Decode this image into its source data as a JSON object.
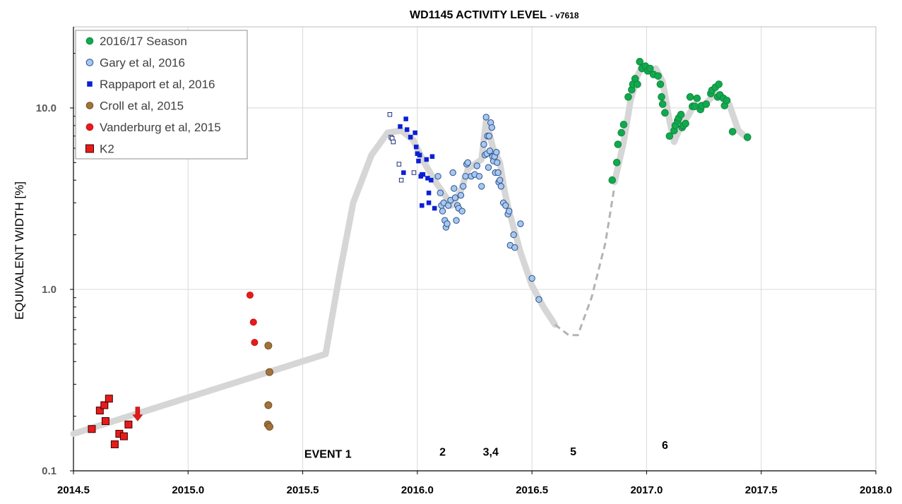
{
  "chart_data": {
    "type": "scatter",
    "title": "WD1145 ACTIVITY LEVEL",
    "subtitle": "- v7618",
    "xlabel": "",
    "ylabel": "EQUIVALENT WIDTH [%]",
    "xlim": [
      2014.5,
      2018.0
    ],
    "ylim": [
      0.1,
      28
    ],
    "yscale": "log",
    "grid": true,
    "legend_position": "top-left",
    "x_ticks": [
      "2014.5",
      "2015.0",
      "2015.5",
      "2016.0",
      "2016.5",
      "2017.0",
      "2017.5",
      "2018.0"
    ],
    "y_ticks": [
      {
        "value": 0.1,
        "label": "0.1"
      },
      {
        "value": 1.0,
        "label": "1.0"
      },
      {
        "value": 10.0,
        "label": "10.0"
      }
    ],
    "annotations": [
      {
        "text": "EVENT 1",
        "x": 2015.61,
        "y": 0.118
      },
      {
        "text": "2",
        "x": 2016.11,
        "y": 0.121
      },
      {
        "text": "3,4",
        "x": 2016.32,
        "y": 0.121
      },
      {
        "text": "5",
        "x": 2016.68,
        "y": 0.122
      },
      {
        "text": "6",
        "x": 2017.08,
        "y": 0.132
      }
    ],
    "arrow": {
      "x": 2014.78,
      "y_from": 0.225,
      "y_to": 0.188,
      "color": "#e11a1a"
    },
    "trend": {
      "color": "#d6d6d6",
      "solid1": [
        [
          2014.5,
          0.16
        ],
        [
          2015.6,
          0.44
        ],
        [
          2015.66,
          1.2
        ],
        [
          2015.72,
          3.0
        ],
        [
          2015.8,
          5.5
        ],
        [
          2015.87,
          7.3
        ],
        [
          2015.93,
          7.5
        ],
        [
          2015.98,
          6.7
        ],
        [
          2016.03,
          5.0
        ],
        [
          2016.08,
          3.9
        ],
        [
          2016.12,
          3.3
        ],
        [
          2016.15,
          2.9
        ],
        [
          2016.19,
          3.5
        ],
        [
          2016.22,
          4.6
        ],
        [
          2016.25,
          4.9
        ],
        [
          2016.28,
          5.2
        ],
        [
          2016.3,
          8.5
        ],
        [
          2016.33,
          6.0
        ],
        [
          2016.36,
          5.0
        ],
        [
          2016.38,
          3.5
        ],
        [
          2016.4,
          2.7
        ],
        [
          2016.45,
          1.6
        ],
        [
          2016.5,
          1.05
        ],
        [
          2016.55,
          0.8
        ],
        [
          2016.6,
          0.64
        ]
      ],
      "dashed": [
        [
          2016.6,
          0.64
        ],
        [
          2016.66,
          0.56
        ],
        [
          2016.7,
          0.56
        ],
        [
          2016.76,
          0.9
        ],
        [
          2016.82,
          1.8
        ],
        [
          2016.86,
          3.7
        ]
      ],
      "solid2": [
        [
          2016.86,
          3.9
        ],
        [
          2016.9,
          6.5
        ],
        [
          2016.93,
          11.0
        ],
        [
          2016.96,
          15.0
        ],
        [
          2016.98,
          17.0
        ],
        [
          2017.01,
          16.0
        ],
        [
          2017.04,
          16.5
        ],
        [
          2017.07,
          14.0
        ],
        [
          2017.1,
          8.5
        ],
        [
          2017.12,
          6.5
        ],
        [
          2017.15,
          8.0
        ],
        [
          2017.18,
          9.0
        ],
        [
          2017.21,
          10.5
        ],
        [
          2017.24,
          10.0
        ],
        [
          2017.27,
          11.0
        ],
        [
          2017.3,
          12.0
        ],
        [
          2017.33,
          11.5
        ],
        [
          2017.36,
          10.5
        ],
        [
          2017.4,
          7.5
        ],
        [
          2017.44,
          6.8
        ]
      ]
    },
    "series": [
      {
        "name": "2016/17 Season",
        "marker": "circle",
        "color": "#12a94e",
        "stroke": "#0c8a3e",
        "size": 4.8,
        "points": [
          [
            2016.85,
            4.0
          ],
          [
            2016.87,
            5.0
          ],
          [
            2016.875,
            6.3
          ],
          [
            2016.89,
            7.3
          ],
          [
            2016.9,
            8.1
          ],
          [
            2016.92,
            11.5
          ],
          [
            2016.935,
            12.6
          ],
          [
            2016.94,
            13.5
          ],
          [
            2016.95,
            14.5
          ],
          [
            2016.96,
            13.5
          ],
          [
            2016.97,
            18.0
          ],
          [
            2016.98,
            16.5
          ],
          [
            2016.995,
            17.0
          ],
          [
            2017.005,
            16.0
          ],
          [
            2017.015,
            16.5
          ],
          [
            2017.03,
            15.3
          ],
          [
            2017.05,
            15.0
          ],
          [
            2017.06,
            13.5
          ],
          [
            2017.065,
            11.5
          ],
          [
            2017.07,
            10.5
          ],
          [
            2017.08,
            9.4
          ],
          [
            2017.1,
            7.0
          ],
          [
            2017.12,
            7.5
          ],
          [
            2017.125,
            8.0
          ],
          [
            2017.135,
            8.5
          ],
          [
            2017.14,
            8.8
          ],
          [
            2017.15,
            9.2
          ],
          [
            2017.155,
            7.8
          ],
          [
            2017.16,
            8.0
          ],
          [
            2017.17,
            8.2
          ],
          [
            2017.19,
            11.5
          ],
          [
            2017.2,
            10.2
          ],
          [
            2017.21,
            10.2
          ],
          [
            2017.22,
            11.3
          ],
          [
            2017.235,
            9.8
          ],
          [
            2017.24,
            10.3
          ],
          [
            2017.26,
            10.5
          ],
          [
            2017.28,
            12.0
          ],
          [
            2017.285,
            12.5
          ],
          [
            2017.3,
            13.0
          ],
          [
            2017.31,
            11.5
          ],
          [
            2017.315,
            13.5
          ],
          [
            2017.32,
            11.8
          ],
          [
            2017.335,
            11.3
          ],
          [
            2017.34,
            10.3
          ],
          [
            2017.35,
            11.0
          ],
          [
            2017.375,
            7.4
          ],
          [
            2017.44,
            6.9
          ]
        ]
      },
      {
        "name": "Gary et al, 2016",
        "marker": "circle",
        "color": "#a4c8f0",
        "stroke": "#2f4f8a",
        "size": 4.2,
        "points": [
          [
            2016.09,
            4.2
          ],
          [
            2016.1,
            3.4
          ],
          [
            2016.105,
            2.9
          ],
          [
            2016.11,
            2.7
          ],
          [
            2016.115,
            3.0
          ],
          [
            2016.12,
            2.4
          ],
          [
            2016.125,
            2.2
          ],
          [
            2016.13,
            2.3
          ],
          [
            2016.135,
            2.9
          ],
          [
            2016.145,
            3.1
          ],
          [
            2016.155,
            4.4
          ],
          [
            2016.16,
            3.6
          ],
          [
            2016.165,
            3.2
          ],
          [
            2016.17,
            2.4
          ],
          [
            2016.175,
            2.9
          ],
          [
            2016.18,
            2.8
          ],
          [
            2016.19,
            3.3
          ],
          [
            2016.195,
            2.7
          ],
          [
            2016.2,
            3.7
          ],
          [
            2016.21,
            4.2
          ],
          [
            2016.215,
            4.9
          ],
          [
            2016.22,
            5.0
          ],
          [
            2016.235,
            4.2
          ],
          [
            2016.25,
            4.3
          ],
          [
            2016.26,
            4.8
          ],
          [
            2016.27,
            4.2
          ],
          [
            2016.28,
            3.7
          ],
          [
            2016.29,
            6.3
          ],
          [
            2016.295,
            5.5
          ],
          [
            2016.3,
            8.9
          ],
          [
            2016.303,
            5.6
          ],
          [
            2016.306,
            7.0
          ],
          [
            2016.31,
            4.7
          ],
          [
            2016.313,
            7.0
          ],
          [
            2016.316,
            5.8
          ],
          [
            2016.32,
            8.3
          ],
          [
            2016.325,
            7.8
          ],
          [
            2016.328,
            5.4
          ],
          [
            2016.332,
            5.1
          ],
          [
            2016.337,
            5.4
          ],
          [
            2016.34,
            4.4
          ],
          [
            2016.345,
            5.7
          ],
          [
            2016.348,
            5.0
          ],
          [
            2016.352,
            4.4
          ],
          [
            2016.355,
            3.9
          ],
          [
            2016.36,
            4.0
          ],
          [
            2016.365,
            3.7
          ],
          [
            2016.375,
            3.0
          ],
          [
            2016.385,
            2.9
          ],
          [
            2016.395,
            2.6
          ],
          [
            2016.4,
            2.7
          ],
          [
            2016.405,
            1.75
          ],
          [
            2016.42,
            2.0
          ],
          [
            2016.425,
            1.7
          ],
          [
            2016.45,
            2.3
          ],
          [
            2016.5,
            1.15
          ],
          [
            2016.53,
            0.88
          ]
        ]
      },
      {
        "name": "Rappaport et al, 2016",
        "marker": "square",
        "color": "#0b1fd6",
        "stroke": "#0b1fd6",
        "size": 6,
        "points": [
          [
            2015.925,
            7.9
          ],
          [
            2015.95,
            8.7
          ],
          [
            2015.955,
            7.6
          ],
          [
            2015.97,
            6.9
          ],
          [
            2015.99,
            7.3
          ],
          [
            2015.995,
            6.1
          ],
          [
            2016.0,
            5.6
          ],
          [
            2016.005,
            5.1
          ],
          [
            2016.01,
            5.5
          ],
          [
            2016.015,
            4.2
          ],
          [
            2016.02,
            4.3
          ],
          [
            2016.025,
            4.3
          ],
          [
            2016.04,
            5.2
          ],
          [
            2016.045,
            4.1
          ],
          [
            2016.05,
            3.4
          ],
          [
            2016.06,
            4.0
          ],
          [
            2016.065,
            5.4
          ],
          [
            2016.075,
            2.8
          ],
          [
            2016.02,
            2.9
          ],
          [
            2016.05,
            3.0
          ],
          [
            2015.94,
            4.4
          ]
        ]
      },
      {
        "name": "Rappaport open squares",
        "marker": "square-open",
        "color": "#ffffff",
        "stroke": "#1f2f7a",
        "size": 5.5,
        "points": [
          [
            2015.88,
            9.2
          ],
          [
            2015.885,
            6.9
          ],
          [
            2015.89,
            6.8
          ],
          [
            2015.895,
            6.5
          ],
          [
            2015.92,
            4.9
          ],
          [
            2015.93,
            4.0
          ],
          [
            2015.985,
            4.4
          ]
        ]
      },
      {
        "name": "Croll et al, 2015",
        "marker": "circle",
        "color": "#a0723c",
        "stroke": "#7a5226",
        "size": 5,
        "points": [
          [
            2015.35,
            0.49
          ],
          [
            2015.355,
            0.35
          ],
          [
            2015.35,
            0.23
          ],
          [
            2015.348,
            0.18
          ],
          [
            2015.355,
            0.175
          ]
        ]
      },
      {
        "name": "Vanderburg et al, 2015",
        "marker": "circle",
        "color": "#e81b1b",
        "stroke": "#c41212",
        "size": 4.5,
        "points": [
          [
            2015.27,
            0.93
          ],
          [
            2015.285,
            0.66
          ],
          [
            2015.29,
            0.51
          ]
        ]
      },
      {
        "name": "K2",
        "marker": "square-big",
        "color": "#e81b1b",
        "stroke": "#3a0000",
        "size": 10,
        "points": [
          [
            2014.58,
            0.17
          ],
          [
            2014.615,
            0.215
          ],
          [
            2014.635,
            0.23
          ],
          [
            2014.64,
            0.188
          ],
          [
            2014.655,
            0.25
          ],
          [
            2014.68,
            0.14
          ],
          [
            2014.7,
            0.16
          ],
          [
            2014.72,
            0.155
          ],
          [
            2014.74,
            0.18
          ]
        ]
      }
    ],
    "legend": [
      {
        "label": "2016/17 Season",
        "marker": "circle",
        "color": "#12a94e",
        "stroke": "#0c8a3e"
      },
      {
        "label": "Gary et al, 2016",
        "marker": "circle",
        "color": "#a4c8f0",
        "stroke": "#2f4f8a"
      },
      {
        "label": "Rappaport et al, 2016",
        "marker": "square",
        "color": "#0b1fd6",
        "stroke": "#0b1fd6"
      },
      {
        "label": "Croll et al, 2015",
        "marker": "circle",
        "color": "#a0723c",
        "stroke": "#7a5226"
      },
      {
        "label": "Vanderburg et al, 2015",
        "marker": "circle",
        "color": "#e81b1b",
        "stroke": "#c41212"
      },
      {
        "label": "K2",
        "marker": "square-big",
        "color": "#e81b1b",
        "stroke": "#3a0000"
      }
    ]
  }
}
